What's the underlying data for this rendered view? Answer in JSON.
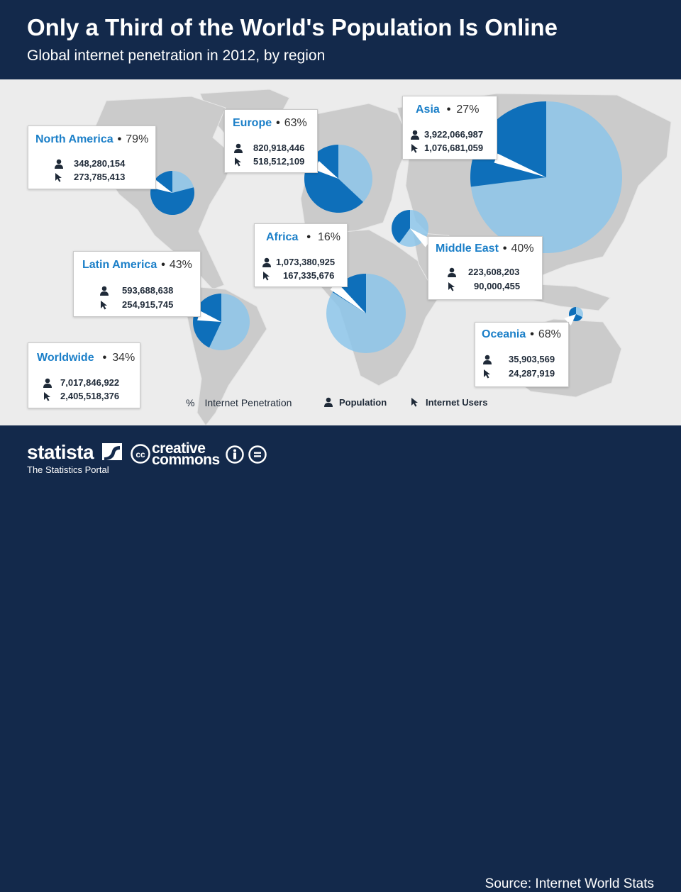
{
  "header": {
    "title": "Only a Third of the World's Population Is Online",
    "subtitle": "Global internet penetration in 2012, by region"
  },
  "colors": {
    "header_bg": "#13294b",
    "map_bg": "#ececec",
    "land": "#cbcbcb",
    "penetration": "#0e6fba",
    "remainder": "rgba(138,196,234,0.82)",
    "label": "#1b7fc8"
  },
  "icons": {
    "population": "person-icon",
    "internet_users": "cursor-icon"
  },
  "chart_data": {
    "type": "pie",
    "description_unit": "Internet penetration share per region (pie), population and internet users per region",
    "regions": [
      {
        "name": "North America",
        "penetration": 79,
        "penetration_label": "79%",
        "population": "348,280,154",
        "users": "273,785,413"
      },
      {
        "name": "Europe",
        "penetration": 63,
        "penetration_label": "63%",
        "population": "820,918,446",
        "users": "518,512,109"
      },
      {
        "name": "Asia",
        "penetration": 27,
        "penetration_label": "27%",
        "population": "3,922,066,987",
        "users": "1,076,681,059"
      },
      {
        "name": "Middle East",
        "penetration": 40,
        "penetration_label": "40%",
        "population": "223,608,203",
        "users": "90,000,455"
      },
      {
        "name": "Africa",
        "penetration": 16,
        "penetration_label": "16%",
        "population": "1,073,380,925",
        "users": "167,335,676"
      },
      {
        "name": "Latin America",
        "penetration": 43,
        "penetration_label": "43%",
        "population": "593,688,638",
        "users": "254,915,745"
      },
      {
        "name": "Oceania",
        "penetration": 68,
        "penetration_label": "68%",
        "population": "35,903,569",
        "users": "24,287,919"
      }
    ],
    "worldwide": {
      "name": "Worldwide",
      "penetration": 34,
      "penetration_label": "34%",
      "population": "7,017,846,922",
      "users": "2,405,518,376"
    },
    "legend": {
      "percent_symbol": "%",
      "penetration": "Internet Penetration",
      "population": "Population",
      "users": "Internet Users"
    }
  },
  "footer": {
    "brand": "statista",
    "brand_sub": "The Statistics Portal",
    "cc_line1": "creative",
    "cc_line2": "commons",
    "source": "Source: Internet World Stats"
  }
}
